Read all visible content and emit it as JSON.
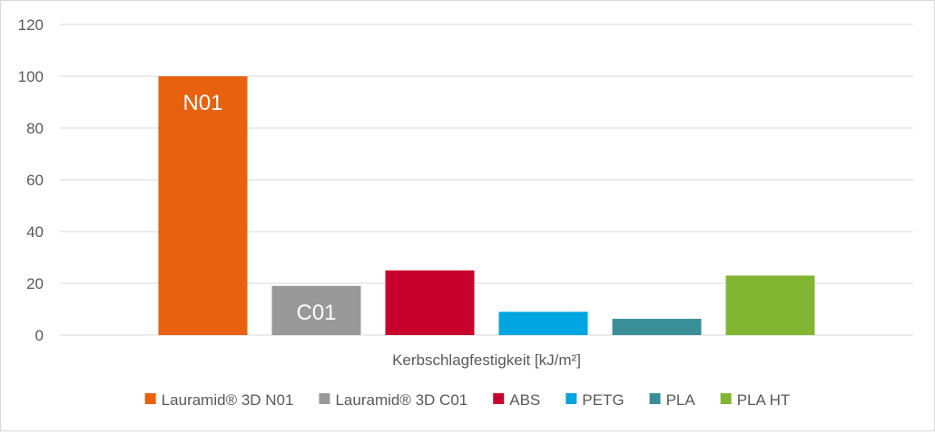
{
  "chart_data": {
    "type": "bar",
    "xlabel": "Kerbschlagfestigkeit [kJ/m²]",
    "ylabel": "",
    "ylim": [
      0,
      120
    ],
    "yticks": [
      0,
      20,
      40,
      60,
      80,
      100,
      120
    ],
    "grid": true,
    "legend_position": "bottom",
    "series": [
      {
        "name": "Lauramid® 3D N01",
        "value": 100,
        "color": "#e8610f",
        "data_label": "N01"
      },
      {
        "name": "Lauramid® 3D C01",
        "value": 19,
        "color": "#999999",
        "data_label": "C01"
      },
      {
        "name": "ABS",
        "value": 25,
        "color": "#c8002c",
        "data_label": ""
      },
      {
        "name": "PETG",
        "value": 9,
        "color": "#00a6df",
        "data_label": ""
      },
      {
        "name": "PLA",
        "value": 6.3,
        "color": "#3a8e97",
        "data_label": ""
      },
      {
        "name": "PLA HT",
        "value": 23,
        "color": "#82b531",
        "data_label": ""
      }
    ]
  }
}
